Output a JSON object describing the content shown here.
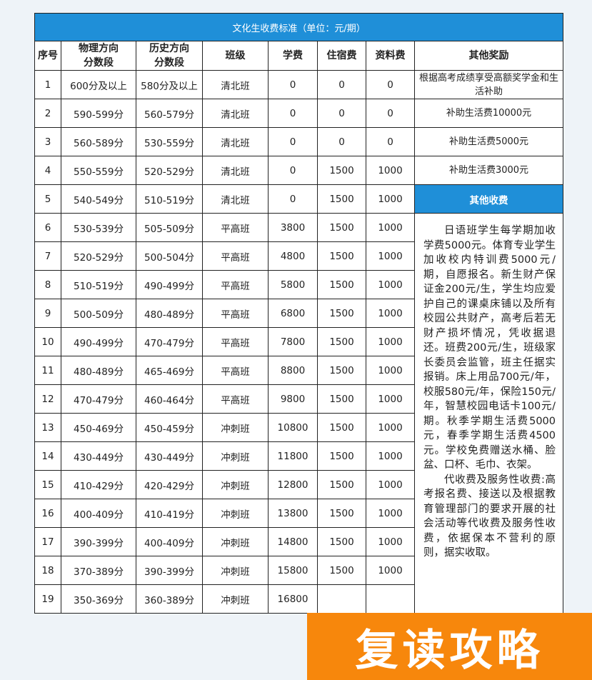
{
  "title": "文化生收费标准（单位：元/期）",
  "headers": [
    "序号",
    "物理方向\n分数段",
    "历史方向\n分数段",
    "班级",
    "学费",
    "住宿费",
    "资料费",
    "其他奖励"
  ],
  "rows": [
    [
      "1",
      "600分及以上",
      "580分及以上",
      "清北班",
      "0",
      "0",
      "0"
    ],
    [
      "2",
      "590-599分",
      "560-579分",
      "清北班",
      "0",
      "0",
      "0"
    ],
    [
      "3",
      "560-589分",
      "530-559分",
      "清北班",
      "0",
      "0",
      "0"
    ],
    [
      "4",
      "550-559分",
      "520-529分",
      "清北班",
      "0",
      "1500",
      "1000"
    ],
    [
      "5",
      "540-549分",
      "510-519分",
      "清北班",
      "0",
      "1500",
      "1000"
    ],
    [
      "6",
      "530-539分",
      "505-509分",
      "平高班",
      "3800",
      "1500",
      "1000"
    ],
    [
      "7",
      "520-529分",
      "500-504分",
      "平高班",
      "4800",
      "1500",
      "1000"
    ],
    [
      "8",
      "510-519分",
      "490-499分",
      "平高班",
      "5800",
      "1500",
      "1000"
    ],
    [
      "9",
      "500-509分",
      "480-489分",
      "平高班",
      "6800",
      "1500",
      "1000"
    ],
    [
      "10",
      "490-499分",
      "470-479分",
      "平高班",
      "7800",
      "1500",
      "1000"
    ],
    [
      "11",
      "480-489分",
      "465-469分",
      "平高班",
      "8800",
      "1500",
      "1000"
    ],
    [
      "12",
      "470-479分",
      "460-464分",
      "平高班",
      "9800",
      "1500",
      "1000"
    ],
    [
      "13",
      "450-469分",
      "450-459分",
      "冲刺班",
      "10800",
      "1500",
      "1000"
    ],
    [
      "14",
      "430-449分",
      "430-449分",
      "冲刺班",
      "11800",
      "1500",
      "1000"
    ],
    [
      "15",
      "410-429分",
      "420-429分",
      "冲刺班",
      "12800",
      "1500",
      "1000"
    ],
    [
      "16",
      "400-409分",
      "410-419分",
      "冲刺班",
      "13800",
      "1500",
      "1000"
    ],
    [
      "17",
      "390-399分",
      "400-409分",
      "冲刺班",
      "14800",
      "1500",
      "1000"
    ],
    [
      "18",
      "370-389分",
      "390-399分",
      "冲刺班",
      "15800",
      "1500",
      "1000"
    ],
    [
      "19",
      "350-369分",
      "360-389分",
      "冲刺班",
      "16800",
      "",
      ""
    ]
  ],
  "awards": [
    "根据高考成绩享受高额奖学金和生活补助",
    "补助生活费10000元",
    "补助生活费5000元",
    "补助生活费3000元"
  ],
  "other_fees_title": "其他收费",
  "other_fees_p1": "日语班学生每学期加收学费5000元。体育专业学生加收校内特训费5000元/期，自愿报名。新生财产保证金200元/生，学生均应爱护自己的课桌床铺以及所有校园公共财产，高考后若无财产损坏情况，凭收据退还。班费200元/生，班级家长委员会监管，班主任据实报销。床上用品700元/年，校服580元/年，保险150元/年，智慧校园电话卡100元/期。秋季学期生活费5000元，春季学期生活费4500元。学校免费赠送水桶、脸盆、口杯、毛巾、衣架。",
  "other_fees_p2": "代收费及服务性收费:高考报名费、接送以及根据教育管理部门的要求开展的社会活动等代收费及服务性收费，依据保本不营利的原则，据实收取。",
  "overlay_text": "复读攻略",
  "colors": {
    "header_blue": "#1f8fd8",
    "overlay_orange": "#f7870c"
  }
}
